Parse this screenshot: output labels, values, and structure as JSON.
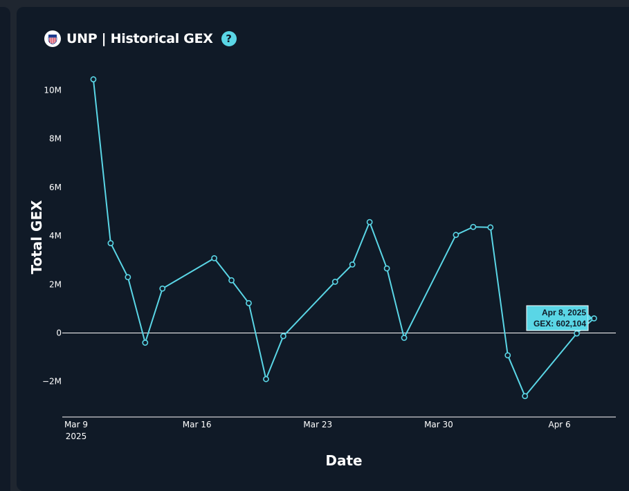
{
  "header": {
    "symbol": "UNP",
    "title": "Historical GEX",
    "help_glyph": "?"
  },
  "colors": {
    "background": "#101a27",
    "line": "#5ad6e6",
    "tooltip_bg": "#5ad6e6",
    "zero_line": "#ffffff"
  },
  "chart_data": {
    "type": "line",
    "xlabel": "Date",
    "ylabel": "Total GEX",
    "x_ticks": [
      {
        "date": "2025-03-09",
        "label": "Mar 9",
        "sub": "2025"
      },
      {
        "date": "2025-03-16",
        "label": "Mar 16",
        "sub": ""
      },
      {
        "date": "2025-03-23",
        "label": "Mar 23",
        "sub": ""
      },
      {
        "date": "2025-03-30",
        "label": "Mar 30",
        "sub": ""
      },
      {
        "date": "2025-04-06",
        "label": "Apr 6",
        "sub": ""
      }
    ],
    "y_ticks": [
      {
        "value": -2000000,
        "label": "−2M"
      },
      {
        "value": 0,
        "label": "0"
      },
      {
        "value": 2000000,
        "label": "2M"
      },
      {
        "value": 4000000,
        "label": "4M"
      },
      {
        "value": 6000000,
        "label": "6M"
      },
      {
        "value": 8000000,
        "label": "8M"
      },
      {
        "value": 10000000,
        "label": "10M"
      }
    ],
    "xlim": [
      "2025-03-09",
      "2025-04-10"
    ],
    "ylim": [
      -3500000,
      11000000
    ],
    "series": [
      {
        "color": "#5ad6e6",
        "points": [
          {
            "x": "2025-03-10",
            "y": 10450000
          },
          {
            "x": "2025-03-11",
            "y": 3700000
          },
          {
            "x": "2025-03-12",
            "y": 2300000
          },
          {
            "x": "2025-03-13",
            "y": -400000
          },
          {
            "x": "2025-03-14",
            "y": 1830000
          },
          {
            "x": "2025-03-17",
            "y": 3080000
          },
          {
            "x": "2025-03-18",
            "y": 2170000
          },
          {
            "x": "2025-03-19",
            "y": 1230000
          },
          {
            "x": "2025-03-20",
            "y": -1900000
          },
          {
            "x": "2025-03-21",
            "y": -130000
          },
          {
            "x": "2025-03-24",
            "y": 2110000
          },
          {
            "x": "2025-03-25",
            "y": 2820000
          },
          {
            "x": "2025-03-26",
            "y": 4570000
          },
          {
            "x": "2025-03-27",
            "y": 2660000
          },
          {
            "x": "2025-03-28",
            "y": -200000
          },
          {
            "x": "2025-03-31",
            "y": 4040000
          },
          {
            "x": "2025-04-01",
            "y": 4370000
          },
          {
            "x": "2025-04-02",
            "y": 4350000
          },
          {
            "x": "2025-04-03",
            "y": -920000
          },
          {
            "x": "2025-04-04",
            "y": -2600000
          },
          {
            "x": "2025-04-07",
            "y": -20000
          },
          {
            "x": "2025-04-08",
            "y": 602104
          }
        ]
      }
    ],
    "tooltip": {
      "point_index": 21,
      "date_label": "Apr 8, 2025",
      "value_label": "GEX: 602,104"
    }
  }
}
